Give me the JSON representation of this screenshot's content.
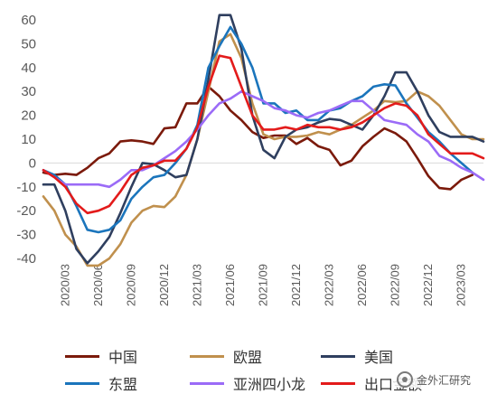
{
  "chart_data": {
    "type": "line",
    "title": "",
    "xlabel": "",
    "ylabel": "",
    "ylim": [
      -40,
      60
    ],
    "yticks": [
      60,
      50,
      40,
      30,
      20,
      10,
      0,
      -10,
      -20,
      -30,
      -40
    ],
    "grid": false,
    "legend_position": "bottom",
    "x": [
      "2020/01",
      "2020/02",
      "2020/03",
      "2020/04",
      "2020/05",
      "2020/06",
      "2020/07",
      "2020/08",
      "2020/09",
      "2020/10",
      "2020/11",
      "2020/12",
      "2021/01",
      "2021/02",
      "2021/03",
      "2021/04",
      "2021/05",
      "2021/06",
      "2021/07",
      "2021/08",
      "2021/09",
      "2021/10",
      "2021/11",
      "2021/12",
      "2022/01",
      "2022/02",
      "2022/03",
      "2022/04",
      "2022/05",
      "2022/06",
      "2022/07",
      "2022/08",
      "2022/09",
      "2022/10",
      "2022/11",
      "2022/12",
      "2023/01",
      "2023/02",
      "2023/03",
      "2023/04",
      "2023/05"
    ],
    "xtick_labels": [
      "2020/03",
      "2020/06",
      "2020/09",
      "2020/12",
      "2021/03",
      "2021/06",
      "2021/09",
      "2021/12",
      "2022/03",
      "2022/06",
      "2022/09",
      "2022/12",
      "2023/03"
    ],
    "series": [
      {
        "name": "中国",
        "color": "#7B1A0B",
        "values": [
          -4,
          -5,
          -4.5,
          -5,
          -2,
          2,
          4,
          9,
          9.5,
          9,
          8,
          14.5,
          15,
          25,
          25,
          32,
          28,
          22,
          18,
          13,
          10.5,
          11.5,
          11.5,
          8,
          10.5,
          7,
          5.5,
          -1,
          1,
          7,
          11,
          14.5,
          12.5,
          9,
          2,
          -5.5,
          -10.5,
          -11,
          -7,
          -5,
          null
        ]
      },
      {
        "name": "欧盟",
        "color": "#C0904D",
        "values": [
          -14,
          -20,
          -30,
          -35,
          -43,
          -43,
          -40,
          -34,
          -25,
          -20,
          -18,
          -18.5,
          -14,
          -5,
          10,
          30,
          51,
          54,
          44,
          25,
          12,
          10,
          11,
          11,
          11.5,
          13,
          12,
          14,
          16,
          19,
          22,
          26,
          25.5,
          26,
          30,
          28,
          24,
          18,
          12,
          10,
          10
        ]
      },
      {
        "name": "美国",
        "color": "#2F3F5F",
        "values": [
          -9,
          -9,
          -20,
          -36,
          -42,
          -37,
          -31,
          -21,
          -10,
          0,
          -0.5,
          -3,
          -6,
          -5,
          10,
          35,
          62,
          62,
          48,
          20,
          5.5,
          2,
          11,
          14,
          15,
          17,
          18.5,
          18,
          16,
          14,
          20,
          28,
          38,
          38,
          30,
          20,
          13,
          11,
          11,
          11,
          9
        ]
      },
      {
        "name": "东盟",
        "color": "#1B75BC",
        "values": [
          -3,
          -5,
          -9,
          -18,
          -28,
          -29,
          -28,
          -24,
          -15,
          -10,
          -6,
          -5,
          0,
          6,
          16,
          40,
          49,
          57,
          50,
          40,
          25,
          25,
          21,
          22,
          18,
          18,
          22,
          23,
          26,
          28,
          32,
          33,
          32.5,
          25,
          19,
          13,
          9,
          4,
          0,
          -4,
          null
        ]
      },
      {
        "name": "亚洲四小龙",
        "color": "#9B6BF7",
        "values": [
          -3,
          -6,
          -9,
          -9,
          -9,
          -9,
          -10,
          -7,
          -3,
          -3,
          -1,
          2,
          5,
          9,
          14,
          20,
          25,
          27,
          30,
          28,
          26,
          23,
          22,
          20,
          19,
          21,
          22,
          24,
          26,
          26,
          22,
          18,
          17,
          16,
          12,
          9,
          3,
          1,
          -2,
          -4,
          -7
        ]
      },
      {
        "name": "出口金额",
        "color": "#E31B1B",
        "values": [
          -3,
          -6,
          -10,
          -17,
          -21,
          -20,
          -18,
          -12,
          -5,
          -2,
          -1,
          1,
          1,
          6,
          15,
          32,
          45,
          44,
          32,
          20,
          14,
          14,
          15,
          14,
          16,
          15,
          15,
          14,
          15,
          17,
          20,
          23,
          25,
          24,
          20,
          12,
          8,
          4,
          4,
          4,
          2
        ]
      }
    ]
  },
  "watermark": {
    "text": "金外汇研究"
  }
}
